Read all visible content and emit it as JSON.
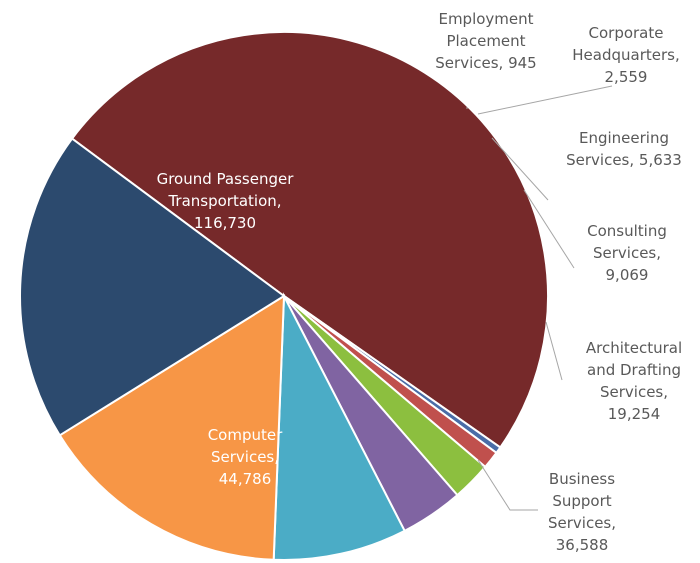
{
  "chart_data": {
    "type": "pie",
    "title": "",
    "slices": [
      {
        "name": "Ground Passenger Transportation",
        "value": 116730,
        "value_label": "116,730",
        "color": "#76292A",
        "label_lines": [
          "Ground Passenger",
          "Transportation,",
          "116,730"
        ]
      },
      {
        "name": "Employment Placement Services",
        "value": 945,
        "value_label": "945",
        "color": "#4A6DA7",
        "label_lines": [
          "Employment",
          "Placement",
          "Services, 945"
        ]
      },
      {
        "name": "Corporate Headquarters",
        "value": 2559,
        "value_label": "2,559",
        "color": "#C0504D",
        "label_lines": [
          "Corporate",
          "Headquarters,",
          "2,559"
        ]
      },
      {
        "name": "Engineering Services",
        "value": 5633,
        "value_label": "5,633",
        "color": "#8CBF3F",
        "label_lines": [
          "Engineering",
          "Services, 5,633"
        ]
      },
      {
        "name": "Consulting Services",
        "value": 9069,
        "value_label": "9,069",
        "color": "#8064A2",
        "label_lines": [
          "Consulting",
          "Services,",
          "9,069"
        ]
      },
      {
        "name": "Architectural and Drafting Services",
        "value": 19254,
        "value_label": "19,254",
        "color": "#4BACC6",
        "label_lines": [
          "Architectural",
          "and Drafting",
          "Services,",
          "19,254"
        ]
      },
      {
        "name": "Business Support Services",
        "value": 36588,
        "value_label": "36,588",
        "color": "#F79646",
        "label_lines": [
          "Business",
          "Support",
          "Services,",
          "36,588"
        ]
      },
      {
        "name": "Computer Services",
        "value": 44786,
        "value_label": "44,786",
        "color": "#2C4A6E",
        "label_lines": [
          "Computer",
          "Services,",
          "44,786"
        ]
      }
    ]
  }
}
